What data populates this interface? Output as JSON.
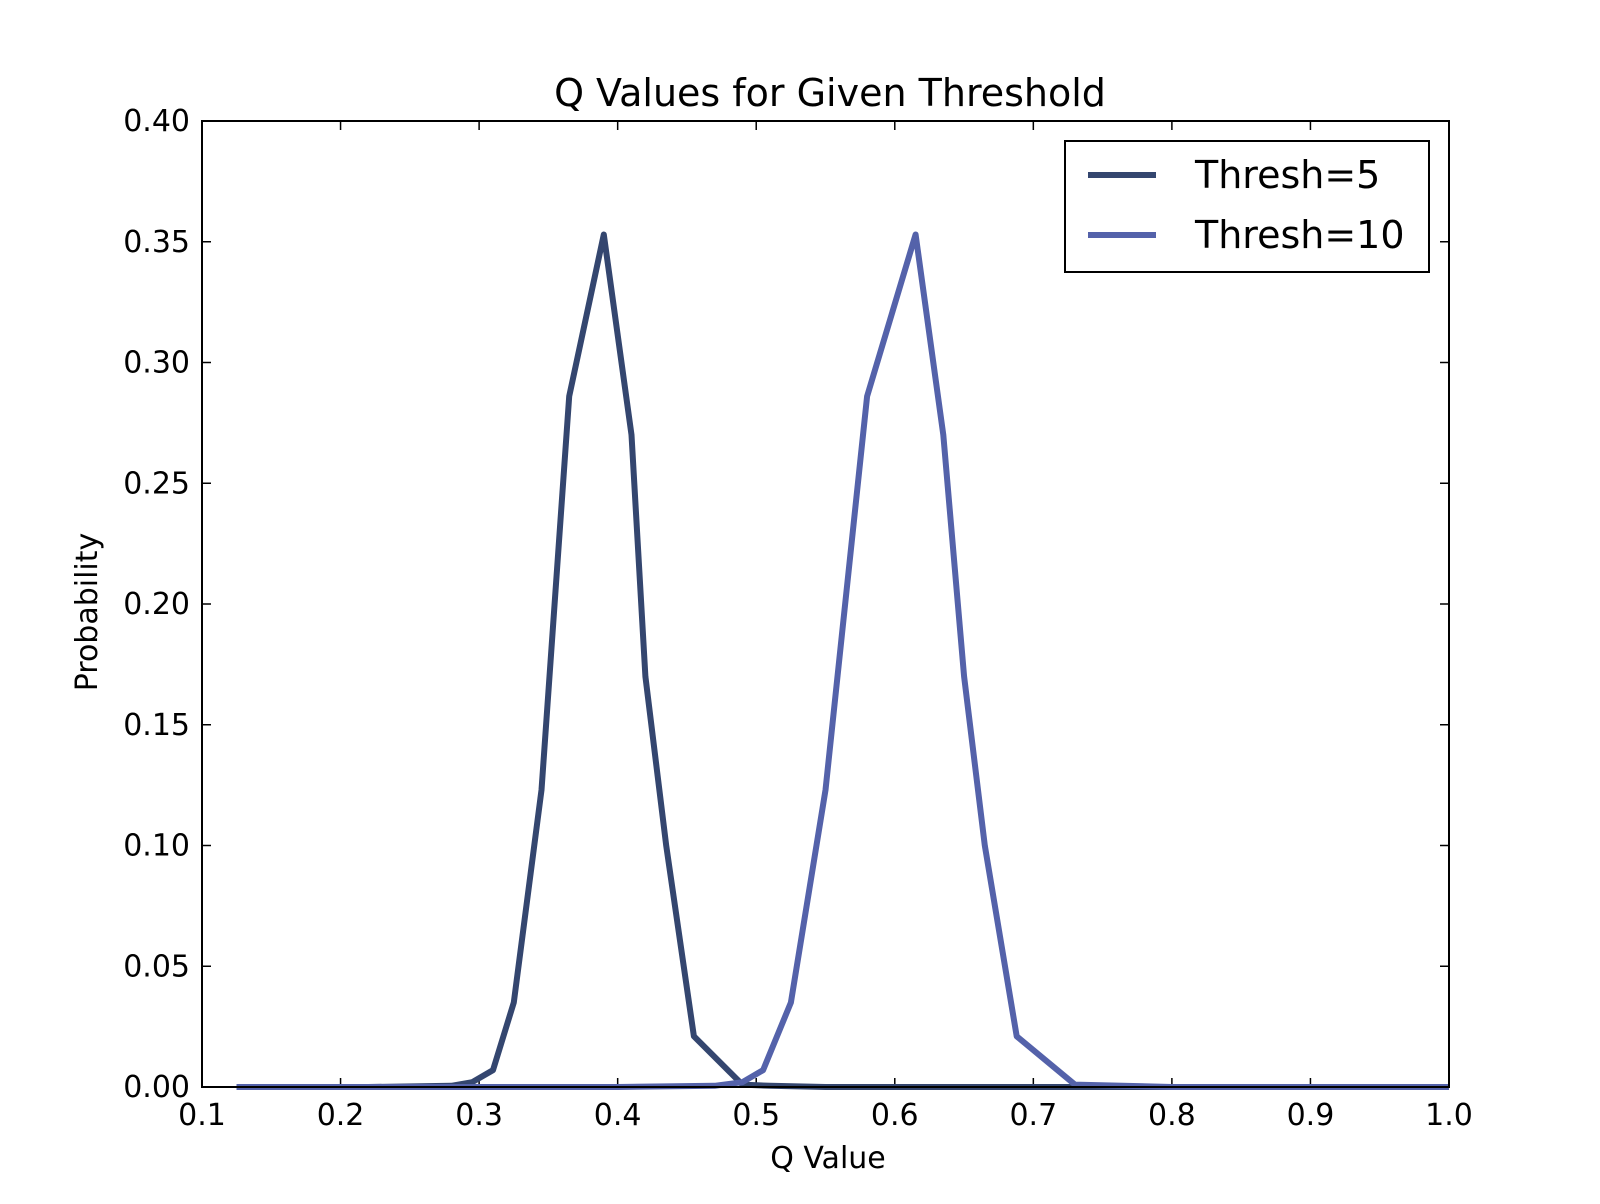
{
  "chart_data": {
    "type": "line",
    "title": "Q Values for Given Threshold",
    "xlabel": "Q Value",
    "ylabel": "Probability",
    "xlim": [
      0.1,
      1.0
    ],
    "ylim": [
      0.0,
      0.4
    ],
    "xticks": [
      "0.1",
      "0.2",
      "0.3",
      "0.4",
      "0.5",
      "0.6",
      "0.7",
      "0.8",
      "0.9",
      "1.0"
    ],
    "yticks": [
      "0.00",
      "0.05",
      "0.10",
      "0.15",
      "0.20",
      "0.25",
      "0.30",
      "0.35",
      "0.40"
    ],
    "grid": false,
    "legend_position": "top-right",
    "series": [
      {
        "name": "Thresh=5",
        "color": "#34466f",
        "x": [
          0.125,
          0.22,
          0.28,
          0.295,
          0.31,
          0.325,
          0.345,
          0.365,
          0.39,
          0.41,
          0.42,
          0.435,
          0.455,
          0.49,
          0.51,
          0.55,
          0.6,
          0.7,
          0.8,
          0.937
        ],
        "y": [
          0.0,
          0.0,
          0.0005,
          0.002,
          0.007,
          0.035,
          0.123,
          0.286,
          0.353,
          0.27,
          0.17,
          0.1,
          0.021,
          0.001,
          0.0005,
          0.0,
          0.0,
          0.0,
          0.0,
          0.0
        ]
      },
      {
        "name": "Thresh=10",
        "color": "#5462aa",
        "x": [
          0.125,
          0.3,
          0.4,
          0.47,
          0.49,
          0.505,
          0.525,
          0.55,
          0.58,
          0.615,
          0.635,
          0.65,
          0.665,
          0.688,
          0.73,
          0.8,
          0.9,
          1.0
        ],
        "y": [
          0.0,
          0.0,
          0.0,
          0.0005,
          0.002,
          0.007,
          0.035,
          0.123,
          0.286,
          0.353,
          0.27,
          0.17,
          0.1,
          0.021,
          0.001,
          0.0,
          0.0,
          0.0
        ]
      }
    ]
  }
}
